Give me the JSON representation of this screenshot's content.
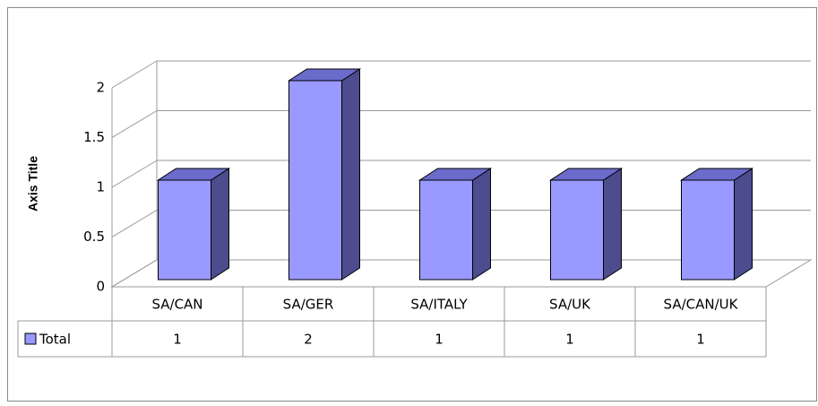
{
  "chart_data": {
    "type": "bar",
    "y_axis_label": "Axis Title",
    "categories": [
      "SA/CAN",
      "SA/GER",
      "SA/ITALY",
      "SA/UK",
      "SA/CAN/UK"
    ],
    "series": [
      {
        "name": "Total",
        "color": "#9999ff",
        "values": [
          1,
          2,
          1,
          1,
          1
        ]
      }
    ],
    "ylim": [
      0,
      2
    ],
    "yticks": [
      0,
      0.5,
      1,
      1.5,
      2
    ],
    "grid": true
  }
}
